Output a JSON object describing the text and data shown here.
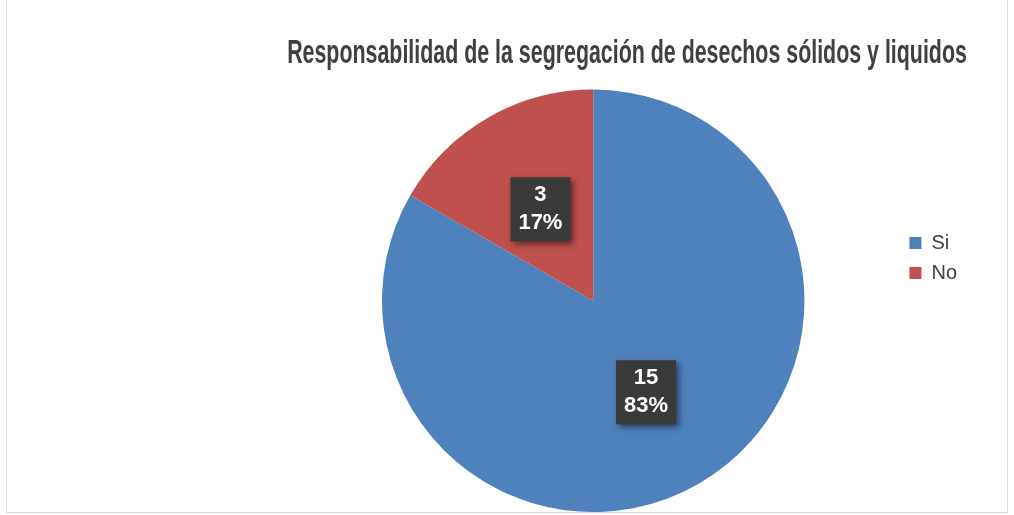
{
  "chart_data": {
    "type": "pie",
    "title": "Responsabilidad de la segregación de desechos sólidos y liquidos",
    "categories": [
      "Si",
      "No"
    ],
    "values": [
      15,
      3
    ],
    "colors": [
      "#4f81bd",
      "#c0504d"
    ],
    "value_labels": [
      "15\n83%",
      "3\n17%"
    ],
    "legend": "right"
  }
}
